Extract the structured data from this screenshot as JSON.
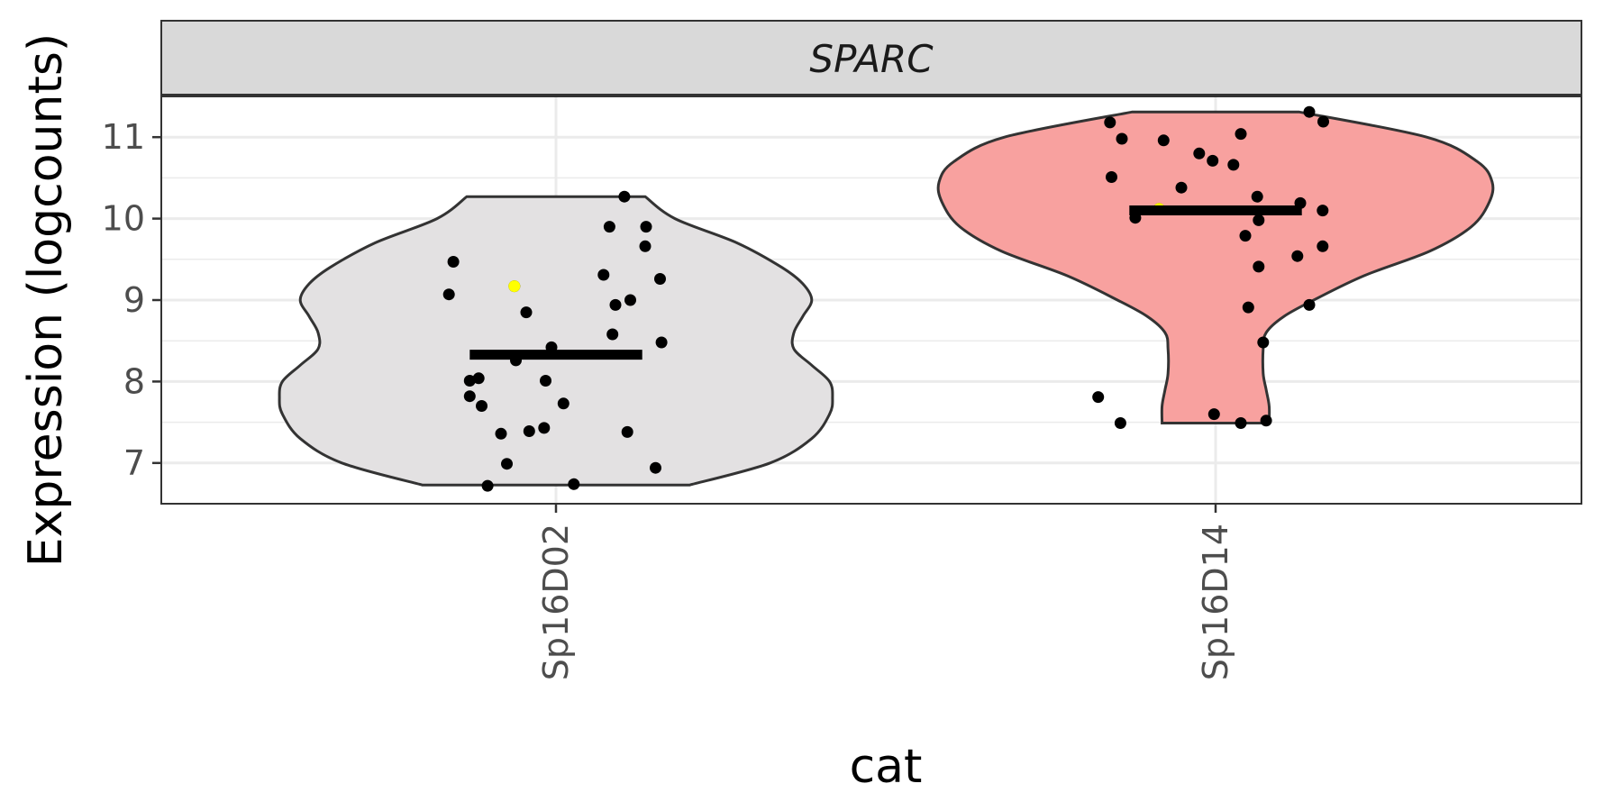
{
  "chart_data": {
    "type": "violin",
    "facet_label": "SPARC",
    "xlabel": "cat",
    "ylabel": "Expression (logcounts)",
    "ylim": [
      6.5,
      11.5
    ],
    "y_ticks": [
      7,
      8,
      9,
      10,
      11
    ],
    "categories": [
      "Sp16D02",
      "Sp16D14"
    ],
    "grid": true,
    "groups": [
      {
        "name": "Sp16D02",
        "fill": "#e3e1e2",
        "median": 8.33,
        "violin_profile": [
          [
            6.73,
            0.45
          ],
          [
            7.0,
            0.72
          ],
          [
            7.3,
            0.86
          ],
          [
            7.6,
            0.92
          ],
          [
            7.8,
            0.93
          ],
          [
            8.0,
            0.92
          ],
          [
            8.2,
            0.86
          ],
          [
            8.4,
            0.8
          ],
          [
            8.6,
            0.8
          ],
          [
            8.8,
            0.83
          ],
          [
            9.0,
            0.86
          ],
          [
            9.2,
            0.83
          ],
          [
            9.4,
            0.76
          ],
          [
            9.7,
            0.61
          ],
          [
            10.0,
            0.4
          ],
          [
            10.27,
            0.3
          ]
        ],
        "points": [
          [
            -0.36,
            9.07
          ],
          [
            -0.345,
            9.47
          ],
          [
            -0.29,
            8.01
          ],
          [
            -0.29,
            7.82
          ],
          [
            -0.26,
            8.04
          ],
          [
            -0.25,
            7.7
          ],
          [
            -0.23,
            6.72
          ],
          [
            -0.185,
            7.36
          ],
          [
            -0.165,
            6.99
          ],
          [
            -0.14,
            9.17
          ],
          [
            -0.135,
            8.26
          ],
          [
            -0.1,
            8.85
          ],
          [
            -0.09,
            7.39
          ],
          [
            -0.04,
            7.43
          ],
          [
            -0.035,
            8.01
          ],
          [
            -0.015,
            8.42
          ],
          [
            0.025,
            7.73
          ],
          [
            0.06,
            6.74
          ],
          [
            0.16,
            9.31
          ],
          [
            0.18,
            9.9
          ],
          [
            0.19,
            8.58
          ],
          [
            0.2,
            8.94
          ],
          [
            0.23,
            10.27
          ],
          [
            0.24,
            7.38
          ],
          [
            0.25,
            9.0
          ],
          [
            0.3,
            9.66
          ],
          [
            0.303,
            9.9
          ],
          [
            0.335,
            6.94
          ],
          [
            0.35,
            9.26
          ],
          [
            0.355,
            8.48
          ]
        ]
      },
      {
        "name": "Sp16D14",
        "fill": "#f8a19f",
        "median": 10.1,
        "violin_profile": [
          [
            7.49,
            0.18
          ],
          [
            7.7,
            0.18
          ],
          [
            7.9,
            0.17
          ],
          [
            8.1,
            0.16
          ],
          [
            8.4,
            0.16
          ],
          [
            8.6,
            0.17
          ],
          [
            8.8,
            0.23
          ],
          [
            9.0,
            0.33
          ],
          [
            9.3,
            0.5
          ],
          [
            9.6,
            0.72
          ],
          [
            9.9,
            0.86
          ],
          [
            10.2,
            0.92
          ],
          [
            10.45,
            0.93
          ],
          [
            10.7,
            0.88
          ],
          [
            11.0,
            0.71
          ],
          [
            11.31,
            0.28
          ]
        ],
        "points": [
          [
            -0.395,
            7.81
          ],
          [
            -0.355,
            11.18
          ],
          [
            -0.35,
            10.51
          ],
          [
            -0.32,
            7.49
          ],
          [
            -0.315,
            10.98
          ],
          [
            -0.27,
            10.01
          ],
          [
            -0.19,
            10.12
          ],
          [
            -0.175,
            10.96
          ],
          [
            -0.115,
            10.38
          ],
          [
            -0.055,
            10.8
          ],
          [
            -0.005,
            7.6
          ],
          [
            -0.01,
            10.71
          ],
          [
            0.06,
            10.66
          ],
          [
            0.085,
            7.49
          ],
          [
            0.1,
            9.79
          ],
          [
            0.11,
            8.91
          ],
          [
            0.085,
            11.04
          ],
          [
            0.14,
            10.27
          ],
          [
            0.145,
            9.98
          ],
          [
            0.145,
            9.41
          ],
          [
            0.16,
            8.48
          ],
          [
            0.17,
            7.52
          ],
          [
            0.275,
            9.54
          ],
          [
            0.285,
            10.19
          ],
          [
            0.315,
            8.94
          ],
          [
            0.315,
            11.31
          ],
          [
            0.36,
            9.66
          ],
          [
            0.36,
            10.1
          ],
          [
            0.362,
            11.19
          ]
        ]
      }
    ],
    "highlight_color": "#ffff00",
    "highlight_points": [
      {
        "group": "Sp16D02",
        "x": -0.14,
        "y": 9.17
      },
      {
        "group": "Sp16D14",
        "x": -0.19,
        "y": 10.12
      }
    ]
  }
}
